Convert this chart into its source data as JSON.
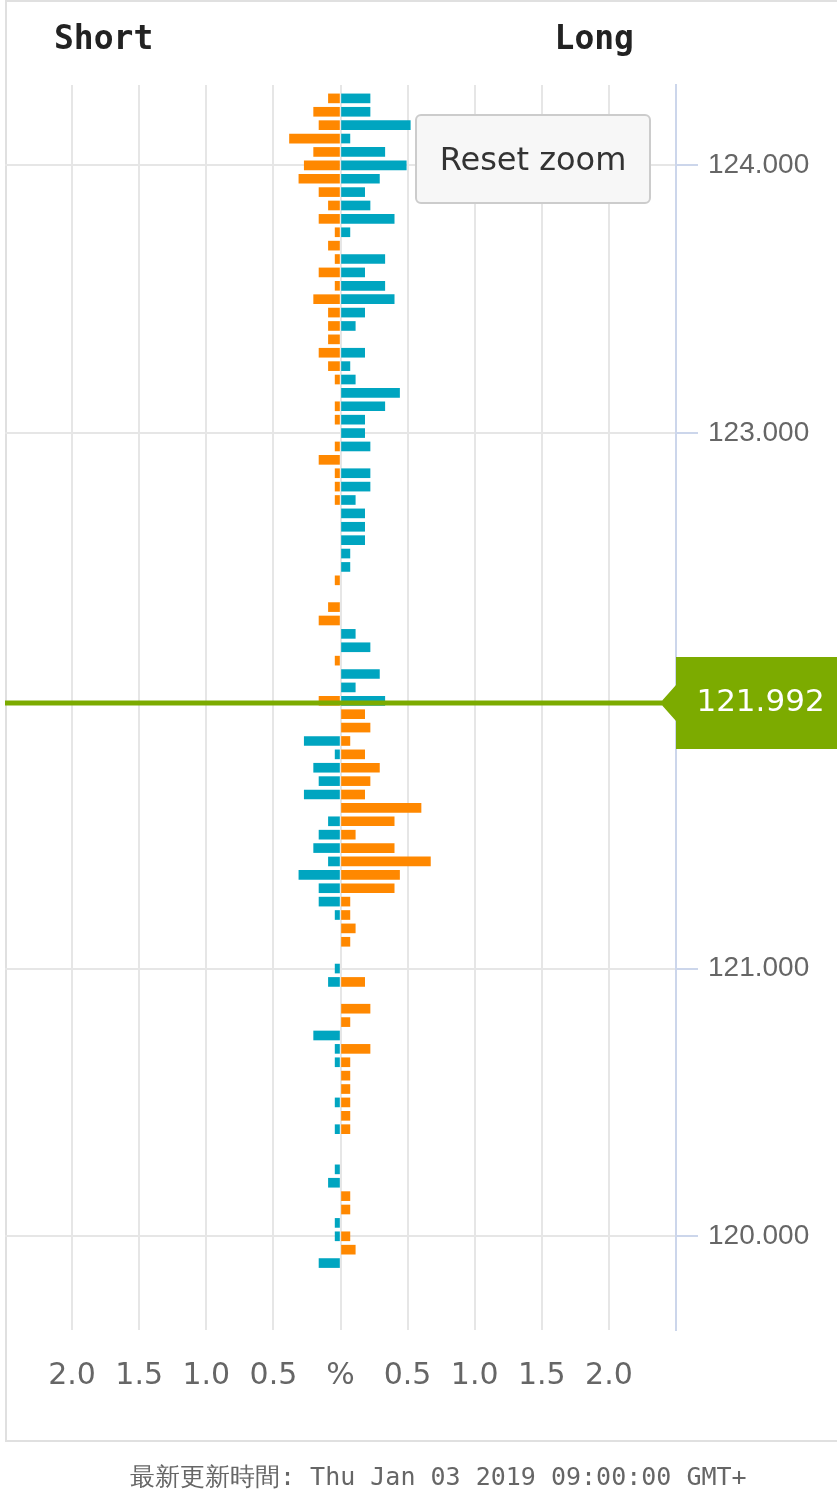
{
  "chart_data": {
    "type": "bar",
    "orientation": "horizontal",
    "stacked": true,
    "grid": true,
    "annotations": [
      "Short",
      "Long",
      "Reset zoom",
      "最新更新時間: Thu Jan 03 2019 09:00:00 GMT+"
    ],
    "x": [
      124.25,
      124.2,
      124.15,
      124.1,
      124.05,
      124,
      123.95,
      123.9,
      123.85,
      123.8,
      123.75,
      123.7,
      123.65,
      123.6,
      123.55,
      123.5,
      123.45,
      123.4,
      123.35,
      123.3,
      123.25,
      123.2,
      123.15,
      123.1,
      123.05,
      123,
      122.95,
      122.9,
      122.85,
      122.8,
      122.75,
      122.7,
      122.65,
      122.6,
      122.55,
      122.5,
      122.45,
      122.4,
      122.35,
      122.3,
      122.25,
      122.2,
      122.15,
      122.1,
      122.05,
      122,
      121.95,
      121.9,
      121.85,
      121.8,
      121.75,
      121.7,
      121.65,
      121.6,
      121.55,
      121.5,
      121.45,
      121.4,
      121.35,
      121.3,
      121.25,
      121.2,
      121.15,
      121.1,
      121.05,
      121,
      120.95,
      120.9,
      120.85,
      120.8,
      120.75,
      120.7,
      120.65,
      120.6,
      120.55,
      120.5,
      120.45,
      120.4,
      120.35,
      120.3,
      120.25,
      120.2,
      120.15,
      120.1,
      120.05,
      120,
      119.95,
      119.9
    ],
    "series": [
      {
        "values": [
          -0.09,
          -0.2,
          -0.16,
          -0.38,
          -0.2,
          -0.27,
          -0.31,
          -0.16,
          -0.09,
          -0.16,
          -0.04,
          -0.09,
          -0.04,
          -0.16,
          -0.04,
          -0.2,
          -0.09,
          -0.09,
          -0.09,
          -0.16,
          -0.09,
          -0.04,
          null,
          -0.04,
          -0.04,
          null,
          -0.04,
          -0.16,
          -0.04,
          -0.04,
          -0.04,
          null,
          null,
          null,
          null,
          null,
          -0.04,
          null,
          -0.09,
          -0.16,
          null,
          null,
          -0.04,
          null,
          null,
          -0.16,
          null,
          null,
          -0.27,
          -0.04,
          -0.2,
          -0.16,
          -0.27,
          null,
          -0.09,
          -0.16,
          -0.2,
          -0.09,
          -0.31,
          -0.16,
          -0.16,
          -0.04,
          null,
          null,
          null,
          -0.04,
          -0.09,
          null,
          null,
          null,
          -0.2,
          -0.04,
          -0.04,
          null,
          null,
          -0.04,
          null,
          -0.04,
          null,
          null,
          -0.04,
          -0.09,
          null,
          null,
          -0.04,
          -0.04,
          null,
          -0.16
        ],
        "colors": [
          "#ff8800",
          "#ff8800",
          "#ff8800",
          "#ff8800",
          "#ff8800",
          "#ff8800",
          "#ff8800",
          "#ff8800",
          "#ff8800",
          "#ff8800",
          "#ff8800",
          "#ff8800",
          "#ff8800",
          "#ff8800",
          "#ff8800",
          "#ff8800",
          "#ff8800",
          "#ff8800",
          "#ff8800",
          "#ff8800",
          "#ff8800",
          "#ff8800",
          "#ff8800",
          "#ff8800",
          "#ff8800",
          "#ff8800",
          "#ff8800",
          "#ff8800",
          "#ff8800",
          "#ff8800",
          "#ff8800",
          "#ff8800",
          "#ff8800",
          "#ff8800",
          "#ff8800",
          "#ff8800",
          "#ff8800",
          "#ff8800",
          "#ff8800",
          "#ff8800",
          "#ff8800",
          "#ff8800",
          "#ff8800",
          "#ff8800",
          "#ff8800",
          "#ff8800",
          "#00a5c0",
          "#00a5c0",
          "#00a5c0",
          "#00a5c0",
          "#00a5c0",
          "#00a5c0",
          "#00a5c0",
          "#00a5c0",
          "#00a5c0",
          "#00a5c0",
          "#00a5c0",
          "#00a5c0",
          "#00a5c0",
          "#00a5c0",
          "#00a5c0",
          "#00a5c0",
          "#00a5c0",
          "#00a5c0",
          "#00a5c0",
          "#00a5c0",
          "#00a5c0",
          "#00a5c0",
          "#00a5c0",
          "#00a5c0",
          "#00a5c0",
          "#00a5c0",
          "#00a5c0",
          "#00a5c0",
          "#00a5c0",
          "#00a5c0",
          "#00a5c0",
          "#00a5c0",
          "#00a5c0",
          "#00a5c0",
          "#00a5c0",
          "#00a5c0",
          "#00a5c0",
          "#00a5c0",
          "#00a5c0",
          "#00a5c0",
          "#00a5c0",
          "#00a5c0"
        ]
      },
      {
        "values": [
          0.22,
          0.22,
          0.52,
          0.07,
          0.33,
          0.49,
          0.29,
          0.18,
          0.22,
          0.4,
          0.07,
          null,
          0.33,
          0.18,
          0.33,
          0.4,
          0.18,
          0.11,
          null,
          0.18,
          0.07,
          0.11,
          0.44,
          0.33,
          0.18,
          0.18,
          0.22,
          null,
          0.22,
          0.22,
          0.11,
          0.18,
          0.18,
          0.18,
          0.07,
          0.07,
          null,
          null,
          null,
          null,
          0.11,
          0.22,
          null,
          0.29,
          0.11,
          0.33,
          0.18,
          0.22,
          0.07,
          0.18,
          0.29,
          0.22,
          0.18,
          0.6,
          0.4,
          0.11,
          0.4,
          0.67,
          0.44,
          0.4,
          0.07,
          0.07,
          0.11,
          0.07,
          null,
          null,
          0.18,
          null,
          0.22,
          0.07,
          null,
          0.22,
          0.07,
          0.07,
          0.07,
          0.07,
          0.07,
          0.07,
          null,
          null,
          null,
          null,
          0.07,
          0.07,
          null,
          0.07,
          0.11,
          null
        ],
        "colors": [
          "#00a5c0",
          "#00a5c0",
          "#00a5c0",
          "#00a5c0",
          "#00a5c0",
          "#00a5c0",
          "#00a5c0",
          "#00a5c0",
          "#00a5c0",
          "#00a5c0",
          "#00a5c0",
          "#00a5c0",
          "#00a5c0",
          "#00a5c0",
          "#00a5c0",
          "#00a5c0",
          "#00a5c0",
          "#00a5c0",
          "#00a5c0",
          "#00a5c0",
          "#00a5c0",
          "#00a5c0",
          "#00a5c0",
          "#00a5c0",
          "#00a5c0",
          "#00a5c0",
          "#00a5c0",
          "#00a5c0",
          "#00a5c0",
          "#00a5c0",
          "#00a5c0",
          "#00a5c0",
          "#00a5c0",
          "#00a5c0",
          "#00a5c0",
          "#00a5c0",
          "#00a5c0",
          "#00a5c0",
          "#00a5c0",
          "#00a5c0",
          "#00a5c0",
          "#00a5c0",
          "#00a5c0",
          "#00a5c0",
          "#00a5c0",
          "#00a5c0",
          "#ff8800",
          "#ff8800",
          "#ff8800",
          "#ff8800",
          "#ff8800",
          "#ff8800",
          "#ff8800",
          "#ff8800",
          "#ff8800",
          "#ff8800",
          "#ff8800",
          "#ff8800",
          "#ff8800",
          "#ff8800",
          "#ff8800",
          "#ff8800",
          "#ff8800",
          "#ff8800",
          "#ff8800",
          "#ff8800",
          "#ff8800",
          "#ff8800",
          "#ff8800",
          "#ff8800",
          "#ff8800",
          "#ff8800",
          "#ff8800",
          "#ff8800",
          "#ff8800",
          "#ff8800",
          "#ff8800",
          "#ff8800",
          "#ff8800",
          "#ff8800",
          "#ff8800",
          "#ff8800",
          "#ff8800",
          "#ff8800",
          "#ff8800",
          "#ff8800",
          "#ff8800",
          "#ff8800"
        ]
      }
    ],
    "xlim": [
      -2.5,
      2.5
    ],
    "xticks": [
      {
        "value": -2,
        "label": "2.0"
      },
      {
        "value": -1.5,
        "label": "1.5"
      },
      {
        "value": -1,
        "label": "1.0"
      },
      {
        "value": -0.5,
        "label": "0.5"
      },
      {
        "value": 0,
        "label": "%"
      },
      {
        "value": 0.5,
        "label": "0.5"
      },
      {
        "value": 1,
        "label": "1.0"
      },
      {
        "value": 1.5,
        "label": "1.5"
      },
      {
        "value": 2,
        "label": "2.0"
      }
    ],
    "ylim": [
      119.65,
      124.3
    ],
    "yticks": [
      {
        "value": 120,
        "label": "120.000"
      },
      {
        "value": 121,
        "label": "121.000"
      },
      {
        "value": 123,
        "label": "123.000"
      },
      {
        "value": 124,
        "label": "124.000"
      }
    ],
    "ref_lines": [
      {
        "axis": "y",
        "value": 121.992,
        "label": "121.992",
        "color": "#7cab00"
      }
    ]
  }
}
